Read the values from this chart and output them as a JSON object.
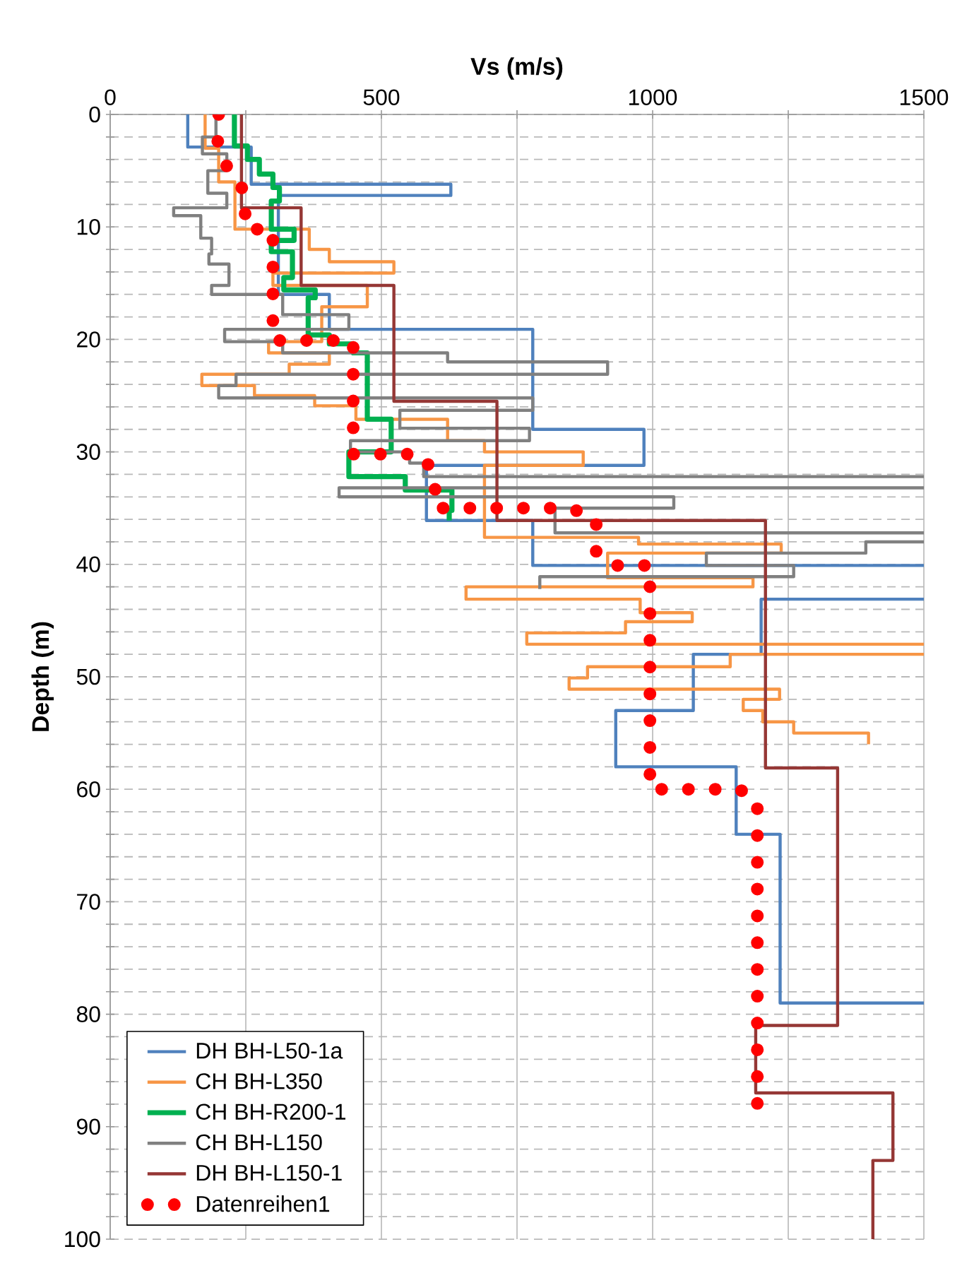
{
  "chart_data": {
    "type": "line",
    "xlabel": "Vs (m/s)",
    "ylabel": "Depth (m)",
    "xlim": [
      0,
      1500
    ],
    "xticks": [
      0,
      {
        "value": 250,
        "label": null
      },
      500,
      {
        "value": 750,
        "label": null
      },
      1000,
      {
        "value": 1250,
        "label": null
      },
      1500
    ],
    "ylim": [
      100,
      0
    ],
    "yticks": [
      0,
      {
        "value": 2,
        "label": null
      },
      {
        "value": 4,
        "label": null
      },
      {
        "value": 6,
        "label": null
      },
      {
        "value": 8,
        "label": null
      },
      10,
      {
        "value": 12,
        "label": null
      },
      {
        "value": 14,
        "label": null
      },
      {
        "value": 16,
        "label": null
      },
      {
        "value": 18,
        "label": null
      },
      20,
      {
        "value": 22,
        "label": null
      },
      {
        "value": 24,
        "label": null
      },
      {
        "value": 26,
        "label": null
      },
      {
        "value": 28,
        "label": null
      },
      30,
      {
        "value": 32,
        "label": null
      },
      {
        "value": 34,
        "label": null
      },
      {
        "value": 36,
        "label": null
      },
      {
        "value": 38,
        "label": null
      },
      40,
      {
        "value": 42,
        "label": null
      },
      {
        "value": 44,
        "label": null
      },
      {
        "value": 46,
        "label": null
      },
      {
        "value": 48,
        "label": null
      },
      50,
      {
        "value": 52,
        "label": null
      },
      {
        "value": 54,
        "label": null
      },
      {
        "value": 56,
        "label": null
      },
      {
        "value": 58,
        "label": null
      },
      60,
      {
        "value": 62,
        "label": null
      },
      {
        "value": 64,
        "label": null
      },
      {
        "value": 66,
        "label": null
      },
      {
        "value": 68,
        "label": null
      },
      70,
      {
        "value": 72,
        "label": null
      },
      {
        "value": 74,
        "label": null
      },
      {
        "value": 76,
        "label": null
      },
      {
        "value": 78,
        "label": null
      },
      80,
      {
        "value": 82,
        "label": null
      },
      {
        "value": 84,
        "label": null
      },
      {
        "value": 86,
        "label": null
      },
      {
        "value": 88,
        "label": null
      },
      90,
      {
        "value": 92,
        "label": null
      },
      {
        "value": 94,
        "label": null
      },
      {
        "value": 96,
        "label": null
      },
      {
        "value": 98,
        "label": null
      },
      100
    ],
    "grid": true,
    "legend": "bottom left",
    "marker": "none",
    "series": [
      {
        "name": "DH BH-L50-1a",
        "color": "#4f81bd",
        "x": [
          143,
          143,
          260,
          260,
          628,
          628,
          310,
          310,
          404,
          404,
          779,
          779,
          984,
          984,
          583,
          583,
          779,
          779,
          1500,
          null,
          1500,
          1200,
          1200,
          1075,
          1075,
          932,
          932,
          1154,
          1154,
          1235,
          1235,
          1500
        ],
        "values": [
          0,
          2.9,
          2.9,
          6.2,
          6.2,
          7.2,
          7.2,
          16,
          16,
          19.1,
          19.1,
          28,
          28,
          31.2,
          31.2,
          36.1,
          36.1,
          40.1,
          40.1,
          null,
          43.1,
          43.1,
          48,
          48,
          53,
          53,
          58,
          58,
          64,
          64,
          79,
          79
        ]
      },
      {
        "name": "CH BH-L350",
        "color": "#f79646",
        "x": [
          175,
          175,
          200,
          200,
          230,
          230,
          367,
          367,
          404,
          404,
          523,
          523,
          300,
          300,
          474,
          474,
          390,
          390,
          292,
          292,
          404,
          404,
          330,
          330,
          169,
          169,
          266,
          266,
          377,
          377,
          453,
          453,
          622,
          622,
          690,
          690,
          872,
          872,
          690,
          690,
          974,
          974,
          1237,
          1237,
          917,
          917,
          1185,
          1185,
          656,
          656,
          977,
          977,
          1073,
          1073,
          950,
          950,
          768,
          768,
          1500,
          null,
          1500,
          1143,
          1143,
          880,
          880,
          846,
          846,
          1234,
          1234,
          1167,
          1167,
          1203,
          1203,
          1260,
          1260,
          1398,
          1398
        ],
        "values": [
          0,
          3,
          3,
          6,
          6,
          10.2,
          10.2,
          12,
          12,
          13.1,
          13.1,
          14.1,
          14.1,
          15.2,
          15.2,
          17.1,
          17.1,
          20.2,
          20.2,
          21.2,
          21.2,
          22.2,
          22.2,
          23.1,
          23.1,
          24.1,
          24.1,
          25,
          25,
          25.9,
          25.9,
          27.1,
          27.1,
          29,
          29,
          30,
          30,
          31.2,
          31.2,
          37.6,
          37.6,
          38.2,
          38.2,
          39,
          39,
          41.2,
          41.2,
          42,
          42,
          43.1,
          43.1,
          44.3,
          44.3,
          45.1,
          45.1,
          46.1,
          46.1,
          47.1,
          47.1,
          null,
          48,
          48,
          49.1,
          49.1,
          50.1,
          50.1,
          51.1,
          51.1,
          52,
          52,
          53,
          53,
          54,
          54,
          55,
          55,
          56
        ]
      },
      {
        "name": "CH BH-R200-1",
        "color": "#00b050",
        "x": [
          229,
          229,
          253,
          253,
          275,
          275,
          300,
          300,
          312,
          312,
          297,
          297,
          339,
          339,
          297,
          297,
          336,
          336,
          320,
          320,
          378,
          378,
          365,
          365,
          404,
          404,
          448,
          448,
          474,
          474,
          518,
          518,
          440,
          440,
          544,
          544,
          630,
          630,
          625,
          625
        ],
        "values": [
          0,
          2.8,
          2.8,
          4,
          4,
          5.3,
          5.3,
          6.5,
          6.5,
          7.7,
          7.7,
          10.2,
          10.2,
          11.2,
          11.2,
          12.2,
          12.2,
          14.5,
          14.5,
          15.6,
          15.6,
          16.3,
          16.3,
          19.6,
          19.6,
          20.4,
          20.4,
          21.2,
          21.2,
          27.1,
          27.1,
          30,
          30,
          32.2,
          32.2,
          33.4,
          33.4,
          35.2,
          35.2,
          36.1
        ]
      },
      {
        "name": "CH BH-L150",
        "color": "#808080",
        "x": [
          195,
          195,
          170,
          170,
          215,
          215,
          180,
          180,
          215,
          215,
          117,
          117,
          167,
          167,
          187,
          187,
          182,
          182,
          219,
          219,
          187,
          187,
          318,
          318,
          440,
          440,
          211,
          211,
          318,
          318,
          622,
          622,
          917,
          917,
          232,
          232,
          200,
          200,
          779,
          779,
          534,
          534,
          773,
          773,
          443,
          443,
          552,
          552,
          578,
          578,
          1500,
          null,
          1500,
          422,
          422,
          1039,
          1039,
          820,
          820,
          1500,
          null,
          1500,
          1393,
          1393,
          1099,
          1099,
          1260,
          1260,
          792,
          792
        ],
        "values": [
          0,
          2,
          2,
          3.5,
          3.5,
          5,
          5,
          7,
          7,
          8.3,
          8.3,
          9,
          9,
          11,
          11,
          12.4,
          12.4,
          13.3,
          13.3,
          15.2,
          15.2,
          16,
          16,
          17.8,
          17.8,
          19.1,
          19.1,
          20.2,
          20.2,
          21.2,
          21.2,
          22,
          22,
          23.1,
          23.1,
          24.1,
          24.1,
          25.2,
          25.2,
          26.3,
          26.3,
          27.9,
          27.9,
          29,
          29,
          30,
          30,
          31,
          31,
          32.2,
          32.2,
          null,
          33.2,
          33.2,
          34,
          34,
          35,
          35,
          37.2,
          37.2,
          null,
          38,
          38,
          39,
          39,
          40.1,
          40.1,
          41.1,
          41.1,
          42.2
        ]
      },
      {
        "name": "DH BH-L150-1",
        "color": "#953735",
        "x": [
          242,
          242,
          352,
          352,
          523,
          523,
          713,
          713,
          1208,
          1208,
          1341,
          1341,
          1190,
          1190,
          1443,
          1443,
          1406,
          1406
        ],
        "values": [
          0,
          8.3,
          8.3,
          15.2,
          15.2,
          25.5,
          25.5,
          36.1,
          36.1,
          58.1,
          58.1,
          81,
          81,
          87,
          87,
          93,
          93,
          100
        ]
      },
      {
        "name": "Datenreihen1",
        "color": "#ff0000",
        "line_style": "dotted",
        "x": [
          200,
          198,
          221,
          247,
          250,
          300,
          300,
          448,
          448,
          575,
          599,
          599,
          849,
          896,
          896,
          932,
          995,
          995,
          1160,
          1193,
          1193
        ],
        "values": [
          0,
          2.9,
          5.2,
          6.8,
          10.2,
          10.2,
          20.1,
          20.1,
          30.2,
          30.2,
          32.2,
          35,
          35,
          36,
          39,
          40.1,
          40.1,
          60,
          60,
          61,
          88
        ]
      }
    ]
  }
}
